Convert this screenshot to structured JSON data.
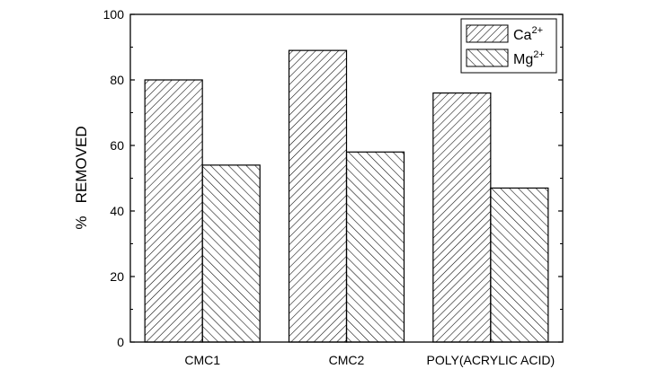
{
  "chart_data": {
    "type": "bar",
    "title": "",
    "xlabel": "",
    "ylabel": "%   REMOVED",
    "ylim": [
      0,
      100
    ],
    "yticks": [
      0,
      20,
      40,
      60,
      80,
      100
    ],
    "categories": [
      "CMC1",
      "CMC2",
      "POLY(ACRYLIC ACID)"
    ],
    "series": [
      {
        "name": "Ca",
        "sup": "2+",
        "pattern": "hatch-forward",
        "values": [
          80,
          89,
          76
        ]
      },
      {
        "name": "Mg",
        "sup": "2+",
        "pattern": "hatch-backward",
        "values": [
          54,
          58,
          47
        ]
      }
    ],
    "legend_position": "top-right",
    "grid": false
  }
}
